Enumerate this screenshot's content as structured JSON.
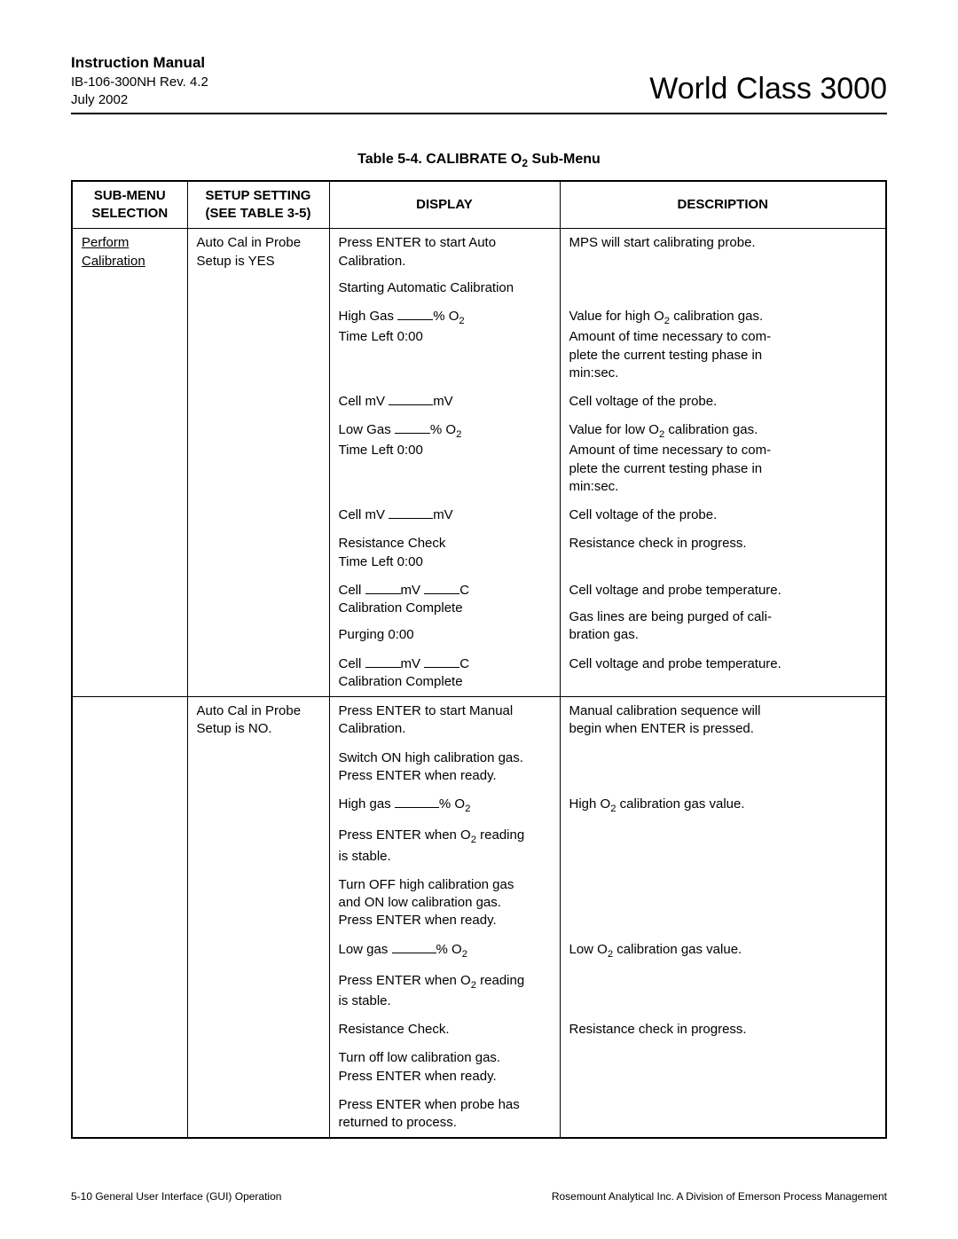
{
  "header": {
    "manual_title": "Instruction Manual",
    "revision": "IB-106-300NH Rev. 4.2",
    "date": "July 2002",
    "product": "World Class 3000"
  },
  "table": {
    "caption_prefix": "Table 5-4.  CALIBRATE O",
    "caption_sub": "2",
    "caption_suffix": " Sub-Menu",
    "headers": {
      "col1a": "SUB-MENU",
      "col1b": "SELECTION",
      "col2a": "SETUP SETTING",
      "col2b": "(SEE TABLE 3-5)",
      "col3": "DISPLAY",
      "col4": "DESCRIPTION"
    },
    "section1": {
      "submenu_l1": "Perform",
      "submenu_l2": "Calibration",
      "setup_l1": "Auto Cal in Probe",
      "setup_l2": "Setup is YES",
      "rows": [
        {
          "display_l1": "Press ENTER to start Auto",
          "display_l2": "Calibration.",
          "display_l3": "Starting Automatic Calibration",
          "desc": "MPS will start calibrating probe."
        },
        {
          "display_high_gas_prefix": "High Gas ",
          "display_high_gas_suffix": "% O",
          "display_high_gas_sub": "2",
          "display_time": "Time Left 0:00",
          "desc_l1": "Value for high O",
          "desc_sub": "2",
          "desc_l1b": " calibration gas.",
          "desc_l2": "Amount of time necessary to com-",
          "desc_l3": "plete the current testing phase in",
          "desc_l4": "min:sec."
        },
        {
          "display_cell_prefix": "Cell mV  ",
          "display_cell_suffix": "mV",
          "desc": "Cell voltage of the probe."
        },
        {
          "display_low_gas_prefix": "Low Gas ",
          "display_low_gas_suffix": "% O",
          "display_low_gas_sub": "2",
          "display_time": "Time Left 0:00",
          "desc_l1": "Value for low O",
          "desc_sub": "2",
          "desc_l1b": " calibration gas.",
          "desc_l2": "Amount of time necessary to com-",
          "desc_l3": "plete the current testing phase in",
          "desc_l4": "min:sec."
        },
        {
          "display_cell_prefix": "Cell mV  ",
          "display_cell_suffix": "mV",
          "desc": "Cell voltage of the probe."
        },
        {
          "display_l1": "Resistance Check",
          "display_l2": "Time Left 0:00",
          "desc": "Resistance check in progress."
        },
        {
          "display_cell_prefix": "Cell ",
          "display_cell_mid": "mV  ",
          "display_cell_suffix": "C",
          "display_l2": "Calibration Complete",
          "display_l3": "Purging 0:00",
          "desc_l1": "Cell voltage and probe temperature.",
          "desc_l2": "Gas lines are being purged of cali-",
          "desc_l3": "bration gas."
        },
        {
          "display_cell_prefix": "Cell ",
          "display_cell_mid": "mV  ",
          "display_cell_suffix": "C",
          "display_l2": "Calibration Complete",
          "desc": "Cell voltage and probe temperature."
        }
      ]
    },
    "section2": {
      "setup_l1": "Auto Cal in Probe",
      "setup_l2": "Setup is NO.",
      "rows": [
        {
          "display_l1": "Press ENTER to start Manual",
          "display_l2": "Calibration.",
          "desc_l1": "Manual calibration sequence will",
          "desc_l2": "begin when ENTER is pressed."
        },
        {
          "display_l1": "Switch ON high calibration gas.",
          "display_l2": "Press ENTER when ready."
        },
        {
          "display_prefix": "High gas ",
          "display_suffix": "% O",
          "display_sub": "2",
          "desc_prefix": "High O",
          "desc_sub": "2",
          "desc_suffix": " calibration gas value."
        },
        {
          "display_l1": "Press ENTER when O",
          "display_sub": "2",
          "display_l1b": " reading",
          "display_l2": "is stable."
        },
        {
          "display_l1": "Turn OFF high calibration gas",
          "display_l2": "and ON low calibration gas.",
          "display_l3": "Press ENTER when ready."
        },
        {
          "display_prefix": "Low gas ",
          "display_suffix": "% O",
          "display_sub": "2",
          "desc_prefix": "Low O",
          "desc_sub": "2",
          "desc_suffix": " calibration gas value."
        },
        {
          "display_l1": "Press ENTER when O",
          "display_sub": "2",
          "display_l1b": " reading",
          "display_l2": "is stable."
        },
        {
          "display_l1": "Resistance Check.",
          "desc": "Resistance check in progress."
        },
        {
          "display_l1": "Turn off low calibration gas.",
          "display_l2": "Press ENTER when ready."
        },
        {
          "display_l1": "Press ENTER when probe has",
          "display_l2": "returned to process."
        }
      ]
    }
  },
  "footer": {
    "left": "5-10    General User Interface (GUI) Operation",
    "right": "Rosemount Analytical Inc.    A Division of Emerson Process Management"
  }
}
